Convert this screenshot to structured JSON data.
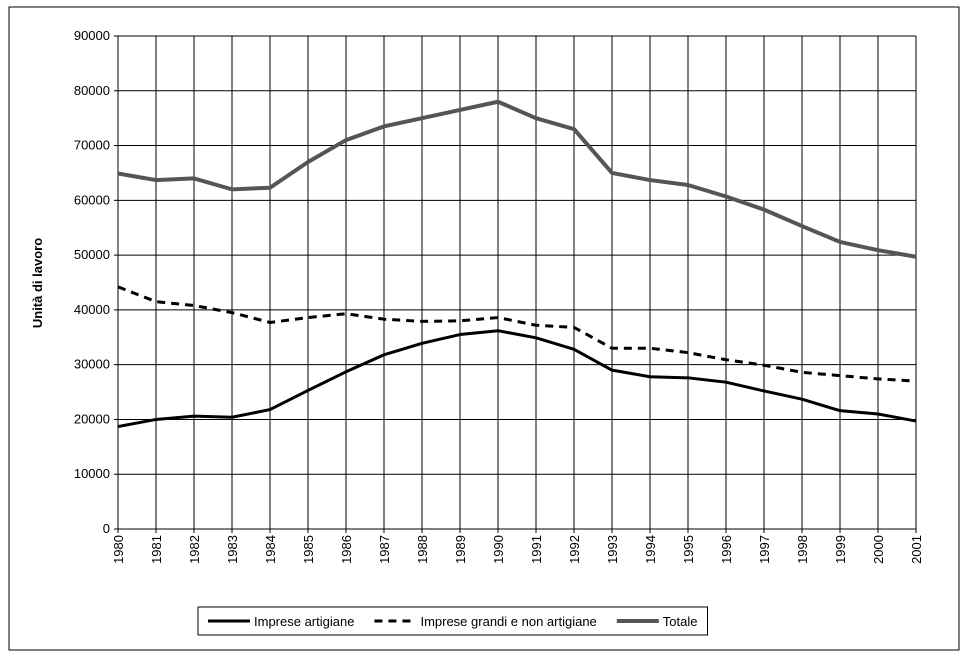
{
  "chart_data": {
    "type": "line",
    "ylabel": "Unità di lavoro",
    "categories": [
      "1980",
      "1981",
      "1982",
      "1983",
      "1984",
      "1985",
      "1986",
      "1987",
      "1988",
      "1989",
      "1990",
      "1991",
      "1992",
      "1993",
      "1994",
      "1995",
      "1996",
      "1997",
      "1998",
      "1999",
      "2000",
      "2001"
    ],
    "series": [
      {
        "name": "Imprese artigiane",
        "color": "#000000",
        "style": "solid",
        "values": [
          18700,
          20000,
          20600,
          20400,
          21800,
          25300,
          28700,
          31800,
          33900,
          35500,
          36200,
          34900,
          32800,
          29000,
          27800,
          27600,
          26800,
          25200,
          23700,
          21600,
          21000,
          19700
        ]
      },
      {
        "name": "Imprese grandi e non artigiane",
        "color": "#000000",
        "style": "dashed",
        "values": [
          44200,
          41500,
          40800,
          39500,
          37700,
          38600,
          39300,
          38300,
          37900,
          38000,
          38600,
          37200,
          36800,
          33000,
          33000,
          32200,
          30900,
          29900,
          28600,
          28000,
          27400,
          27000
        ]
      },
      {
        "name": "Totale",
        "color": "#555555",
        "style": "thick",
        "values": [
          64900,
          63700,
          64000,
          62000,
          62300,
          67000,
          71000,
          73500,
          75000,
          76500,
          78000,
          75000,
          73000,
          65000,
          63700,
          62800,
          60700,
          58300,
          55300,
          52400,
          50900,
          49700
        ]
      }
    ],
    "ylim": [
      0,
      90000
    ],
    "yticks": [
      0,
      10000,
      20000,
      30000,
      40000,
      50000,
      60000,
      70000,
      80000,
      90000
    ],
    "grid": true,
    "legend": "bottom"
  }
}
